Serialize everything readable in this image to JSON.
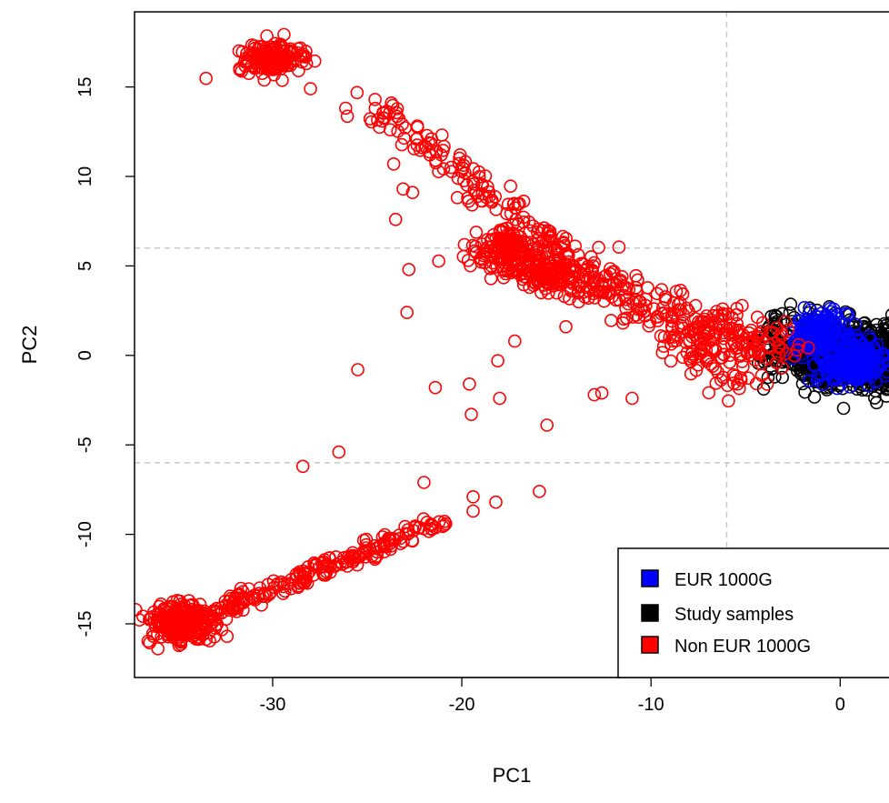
{
  "chart_data": {
    "type": "scatter",
    "title": "",
    "xlabel": "PC1",
    "ylabel": "PC2",
    "xlim": [
      -37.3,
      3.3
    ],
    "ylim": [
      -18.0,
      19.2
    ],
    "xticks": [
      -30,
      -20,
      -10,
      0
    ],
    "yticks": [
      -15,
      -10,
      -5,
      0,
      5,
      10,
      15
    ],
    "ref_lines": {
      "v": [
        -6
      ],
      "h": [
        6,
        -6
      ],
      "style": "dashed",
      "color": "#c8c8c8"
    },
    "grid": false,
    "marker": "open-circle",
    "legend": {
      "position": "bottom-right",
      "entries": [
        "EUR 1000G",
        "Study samples",
        "Non EUR 1000G"
      ]
    },
    "series": [
      {
        "name": "Study samples",
        "color": "#000000",
        "clusters": [
          {
            "cx": 0.5,
            "cy": 0.0,
            "sx": 1.6,
            "sy": 0.9,
            "n": 700
          },
          {
            "cx": -2.5,
            "cy": 0.6,
            "sx": 1.0,
            "sy": 1.0,
            "n": 90
          },
          {
            "cx": 2.5,
            "cy": -0.4,
            "sx": 0.6,
            "sy": 0.8,
            "n": 120
          }
        ]
      },
      {
        "name": "EUR 1000G",
        "color": "#0000ff",
        "clusters": [
          {
            "cx": -1.0,
            "cy": 1.2,
            "sx": 0.7,
            "sy": 0.6,
            "n": 180
          },
          {
            "cx": 0.6,
            "cy": -0.4,
            "sx": 0.9,
            "sy": 0.6,
            "n": 220
          }
        ]
      },
      {
        "name": "Non EUR 1000G",
        "color": "#ff0000",
        "clusters": [
          {
            "cx": -30.0,
            "cy": 16.6,
            "sx": 0.9,
            "sy": 0.4,
            "n": 160
          },
          {
            "cx": -17.5,
            "cy": 5.8,
            "sx": 0.9,
            "sy": 0.6,
            "n": 170
          },
          {
            "cx": -15.5,
            "cy": 4.6,
            "sx": 0.9,
            "sy": 0.5,
            "n": 110
          },
          {
            "cx": -34.8,
            "cy": -15.0,
            "sx": 0.9,
            "sy": 0.6,
            "n": 260
          }
        ],
        "trails": [
          {
            "from": [
              -25,
              14.2
            ],
            "to": [
              -12,
              3.6
            ],
            "n": 170,
            "spread": 0.9
          },
          {
            "from": [
              -15,
              4.5
            ],
            "to": [
              -3,
              0.3
            ],
            "n": 230,
            "spread": 1.3
          },
          {
            "from": [
              -9,
              1.5
            ],
            "to": [
              -5,
              -1.5
            ],
            "n": 80,
            "spread": 1.0
          },
          {
            "from": [
              -34,
              -14.8
            ],
            "to": [
              -21,
              -9.2
            ],
            "n": 210,
            "spread": 0.5
          }
        ],
        "outliers": [
          [
            -23.5,
            7.6
          ],
          [
            -22.8,
            4.8
          ],
          [
            -22.9,
            2.4
          ],
          [
            -25.5,
            -0.8
          ],
          [
            -21.4,
            -1.8
          ],
          [
            -19.6,
            -1.6
          ],
          [
            -19.5,
            -3.3
          ],
          [
            -18.0,
            -2.4
          ],
          [
            -18.1,
            -0.3
          ],
          [
            -17.2,
            0.8
          ],
          [
            -15.5,
            -3.9
          ],
          [
            -15.9,
            -7.6
          ],
          [
            -18.2,
            -8.2
          ],
          [
            -19.4,
            -7.9
          ],
          [
            -19.4,
            -8.7
          ],
          [
            -21.2,
            -9.3
          ],
          [
            -22.0,
            -7.1
          ],
          [
            -26.5,
            -5.4
          ],
          [
            -28.4,
            -6.2
          ],
          [
            -23.1,
            9.3
          ],
          [
            -22.6,
            9.1
          ],
          [
            -23.6,
            10.7
          ],
          [
            -20.2,
            9.9
          ],
          [
            -28.0,
            14.9
          ],
          [
            -14.5,
            1.6
          ],
          [
            -13.0,
            -2.2
          ],
          [
            -11.0,
            -2.4
          ],
          [
            -12.6,
            -2.1
          ]
        ]
      }
    ]
  }
}
